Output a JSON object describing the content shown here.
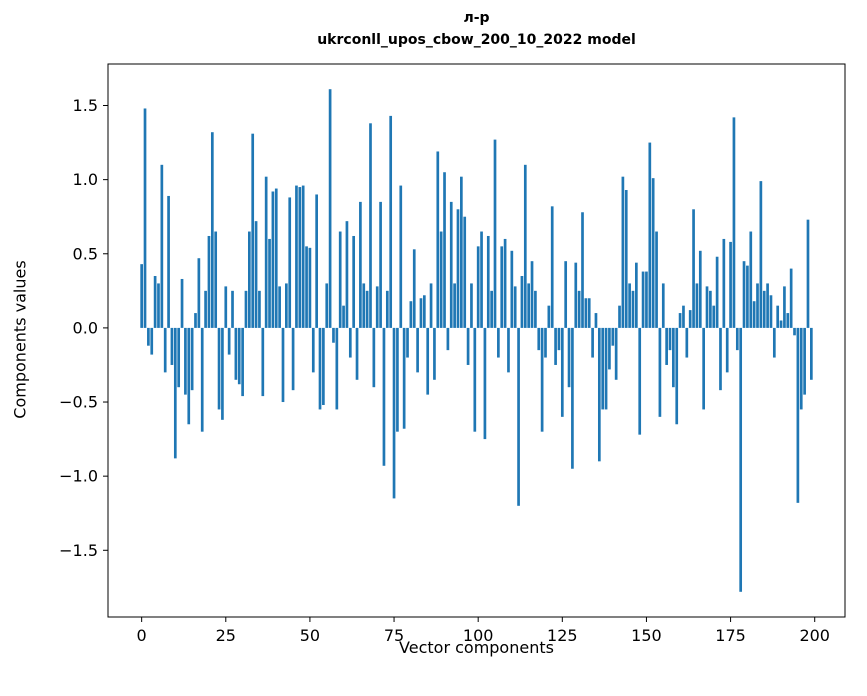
{
  "figure": {
    "background": "#ffffff"
  },
  "chart_data": {
    "type": "bar",
    "title_line1": "л-р",
    "title_line2": "ukrconll_upos_cbow_200_10_2022 model",
    "xlabel": "Vector components",
    "ylabel": "Components values",
    "bar_color": "#1f77b4",
    "xlim": [
      -10,
      209
    ],
    "ylim": [
      -1.95,
      1.78
    ],
    "xticks": [
      0,
      25,
      50,
      75,
      100,
      125,
      150,
      175,
      200
    ],
    "yticks": [
      -1.5,
      -1.0,
      -0.5,
      0.0,
      0.5,
      1.0,
      1.5
    ],
    "grid": false,
    "legend": false,
    "x_start": 0,
    "values": [
      0.43,
      1.48,
      -0.12,
      -0.18,
      0.35,
      0.3,
      1.1,
      -0.3,
      0.89,
      -0.25,
      -0.88,
      -0.4,
      0.33,
      -0.45,
      -0.65,
      -0.42,
      0.1,
      0.47,
      -0.7,
      0.25,
      0.62,
      1.32,
      0.65,
      -0.55,
      -0.62,
      0.28,
      -0.18,
      0.25,
      -0.35,
      -0.38,
      -0.46,
      0.25,
      0.65,
      1.31,
      0.72,
      0.25,
      -0.46,
      1.02,
      0.6,
      0.92,
      0.94,
      0.28,
      -0.5,
      0.3,
      0.88,
      -0.42,
      0.96,
      0.95,
      0.96,
      0.55,
      0.54,
      -0.3,
      0.9,
      -0.55,
      -0.52,
      0.3,
      1.61,
      -0.1,
      -0.55,
      0.65,
      0.15,
      0.72,
      -0.2,
      0.62,
      -0.35,
      0.85,
      0.3,
      0.25,
      1.38,
      -0.4,
      0.28,
      0.85,
      -0.93,
      0.25,
      1.43,
      -1.15,
      -0.7,
      0.96,
      -0.68,
      -0.2,
      0.18,
      0.53,
      -0.3,
      0.2,
      0.22,
      -0.45,
      0.3,
      -0.35,
      1.19,
      0.65,
      1.05,
      -0.15,
      0.85,
      0.3,
      0.8,
      1.02,
      0.75,
      -0.25,
      0.3,
      -0.7,
      0.55,
      0.65,
      -0.75,
      0.62,
      0.25,
      1.27,
      -0.2,
      0.55,
      0.6,
      -0.3,
      0.52,
      0.28,
      -1.2,
      0.35,
      1.1,
      0.3,
      0.45,
      0.25,
      -0.15,
      -0.7,
      -0.2,
      0.15,
      0.82,
      -0.25,
      -0.15,
      -0.6,
      0.45,
      -0.4,
      -0.95,
      0.44,
      0.25,
      0.78,
      0.2,
      0.2,
      -0.2,
      0.1,
      -0.9,
      -0.55,
      -0.55,
      -0.28,
      -0.12,
      -0.35,
      0.15,
      1.02,
      0.93,
      0.3,
      0.25,
      0.44,
      -0.72,
      0.38,
      0.38,
      1.25,
      1.01,
      0.65,
      -0.6,
      0.3,
      -0.25,
      -0.15,
      -0.4,
      -0.65,
      0.1,
      0.15,
      -0.2,
      0.12,
      0.8,
      0.3,
      0.52,
      -0.55,
      0.28,
      0.25,
      0.15,
      0.48,
      -0.42,
      0.6,
      -0.3,
      0.58,
      1.42,
      -0.15,
      -1.78,
      0.45,
      0.42,
      0.65,
      0.18,
      0.3,
      0.99,
      0.25,
      0.3,
      0.22,
      -0.2,
      0.15,
      0.05,
      0.28,
      0.1,
      0.4,
      -0.05,
      -1.18,
      -0.55,
      -0.45,
      0.73,
      -0.35
    ]
  }
}
